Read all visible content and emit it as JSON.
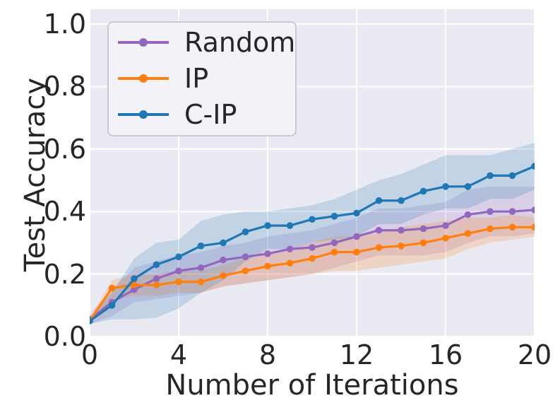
{
  "chart_data": {
    "type": "line",
    "title": "",
    "xlabel": "Number of Iterations",
    "ylabel": "Test Accuracy",
    "xlim": [
      0,
      20
    ],
    "ylim": [
      0,
      1.048
    ],
    "grid": true,
    "grid_color": "#ffffff",
    "plot_background": "#eaeaf2",
    "text_color": "#262626",
    "legend_position": "upper left",
    "x_ticks": [
      0,
      4,
      8,
      12,
      16,
      20
    ],
    "x_tick_labels": [
      "0",
      "4",
      "8",
      "12",
      "16",
      "20"
    ],
    "y_ticks": [
      0.0,
      0.2,
      0.4,
      0.6,
      0.8,
      1.0
    ],
    "y_tick_labels": [
      "0.0",
      "0.2",
      "0.4",
      "0.6",
      "0.8",
      "1.0"
    ],
    "x": [
      0,
      1,
      2,
      3,
      4,
      5,
      6,
      7,
      8,
      9,
      10,
      11,
      12,
      13,
      14,
      15,
      16,
      17,
      18,
      19,
      20
    ],
    "series": [
      {
        "name": "Random",
        "color": "#9467bd",
        "band_opacity": 0.2,
        "values": [
          0.055,
          0.11,
          0.15,
          0.185,
          0.21,
          0.22,
          0.245,
          0.255,
          0.265,
          0.28,
          0.285,
          0.3,
          0.32,
          0.34,
          0.34,
          0.345,
          0.355,
          0.39,
          0.4,
          0.4,
          0.405
        ],
        "band_lower": [
          0.04,
          0.065,
          0.11,
          0.12,
          0.13,
          0.14,
          0.16,
          0.17,
          0.18,
          0.19,
          0.2,
          0.22,
          0.24,
          0.26,
          0.26,
          0.26,
          0.27,
          0.3,
          0.32,
          0.32,
          0.33
        ],
        "band_upper": [
          0.07,
          0.15,
          0.22,
          0.24,
          0.26,
          0.27,
          0.29,
          0.3,
          0.32,
          0.33,
          0.34,
          0.36,
          0.38,
          0.41,
          0.41,
          0.42,
          0.43,
          0.47,
          0.48,
          0.48,
          0.48
        ]
      },
      {
        "name": "IP",
        "color": "#ff7f0e",
        "band_opacity": 0.2,
        "values": [
          0.05,
          0.155,
          0.165,
          0.165,
          0.175,
          0.175,
          0.195,
          0.21,
          0.225,
          0.235,
          0.25,
          0.27,
          0.27,
          0.285,
          0.29,
          0.3,
          0.315,
          0.33,
          0.345,
          0.35,
          0.35
        ],
        "band_lower": [
          0.04,
          0.12,
          0.13,
          0.13,
          0.14,
          0.14,
          0.16,
          0.17,
          0.18,
          0.19,
          0.2,
          0.21,
          0.21,
          0.22,
          0.23,
          0.24,
          0.25,
          0.28,
          0.3,
          0.31,
          0.32
        ],
        "band_upper": [
          0.06,
          0.18,
          0.2,
          0.2,
          0.21,
          0.21,
          0.23,
          0.25,
          0.26,
          0.28,
          0.3,
          0.32,
          0.32,
          0.33,
          0.35,
          0.36,
          0.37,
          0.38,
          0.38,
          0.39,
          0.38
        ]
      },
      {
        "name": "C-IP",
        "color": "#1f77b4",
        "band_opacity": 0.2,
        "values": [
          0.05,
          0.1,
          0.185,
          0.23,
          0.255,
          0.29,
          0.3,
          0.335,
          0.355,
          0.355,
          0.375,
          0.385,
          0.395,
          0.435,
          0.435,
          0.465,
          0.48,
          0.48,
          0.515,
          0.515,
          0.545
        ],
        "band_lower": [
          0.04,
          0.055,
          0.055,
          0.06,
          0.09,
          0.14,
          0.18,
          0.24,
          0.28,
          0.28,
          0.3,
          0.31,
          0.32,
          0.36,
          0.36,
          0.39,
          0.41,
          0.41,
          0.44,
          0.44,
          0.47
        ],
        "band_upper": [
          0.06,
          0.14,
          0.25,
          0.3,
          0.31,
          0.37,
          0.39,
          0.4,
          0.4,
          0.41,
          0.42,
          0.44,
          0.47,
          0.5,
          0.52,
          0.55,
          0.58,
          0.58,
          0.58,
          0.6,
          0.62
        ]
      }
    ]
  }
}
